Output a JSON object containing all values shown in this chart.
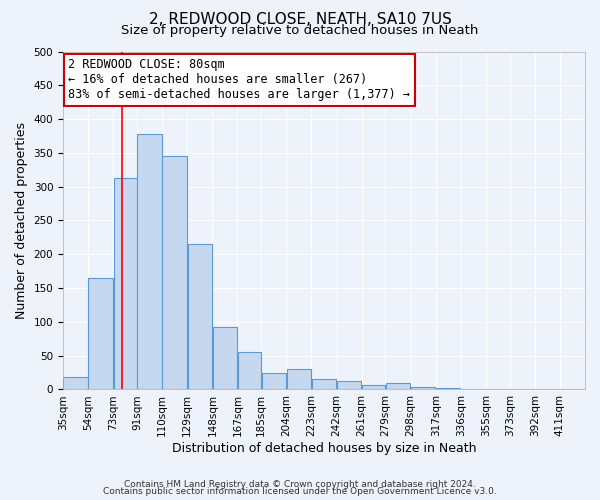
{
  "title": "2, REDWOOD CLOSE, NEATH, SA10 7US",
  "subtitle": "Size of property relative to detached houses in Neath",
  "xlabel": "Distribution of detached houses by size in Neath",
  "ylabel": "Number of detached properties",
  "bin_labels": [
    "35sqm",
    "54sqm",
    "73sqm",
    "91sqm",
    "110sqm",
    "129sqm",
    "148sqm",
    "167sqm",
    "185sqm",
    "204sqm",
    "223sqm",
    "242sqm",
    "261sqm",
    "279sqm",
    "298sqm",
    "317sqm",
    "336sqm",
    "355sqm",
    "373sqm",
    "392sqm",
    "411sqm"
  ],
  "bar_values": [
    18,
    165,
    313,
    378,
    346,
    215,
    93,
    55,
    25,
    30,
    15,
    13,
    7,
    10,
    3,
    2,
    1,
    0,
    1,
    0,
    1
  ],
  "bar_color": "#c5d8f0",
  "bar_edge_color": "#5b9bd5",
  "red_line_x": 80,
  "bin_edges": [
    35,
    54,
    73,
    91,
    110,
    129,
    148,
    167,
    185,
    204,
    223,
    242,
    261,
    279,
    298,
    317,
    336,
    355,
    373,
    392,
    411,
    430
  ],
  "ylim": [
    0,
    500
  ],
  "yticks": [
    0,
    50,
    100,
    150,
    200,
    250,
    300,
    350,
    400,
    450,
    500
  ],
  "annotation_text": "2 REDWOOD CLOSE: 80sqm\n← 16% of detached houses are smaller (267)\n83% of semi-detached houses are larger (1,377) →",
  "annotation_box_color": "#ffffff",
  "annotation_box_edge_color": "#cc0000",
  "footer_line1": "Contains HM Land Registry data © Crown copyright and database right 2024.",
  "footer_line2": "Contains public sector information licensed under the Open Government Licence v3.0.",
  "bg_color": "#eef2fb",
  "grid_color": "#ffffff",
  "title_fontsize": 11,
  "subtitle_fontsize": 9.5,
  "axis_label_fontsize": 9,
  "tick_label_fontsize": 7.5,
  "annotation_fontsize": 8.5,
  "footer_fontsize": 6.5
}
